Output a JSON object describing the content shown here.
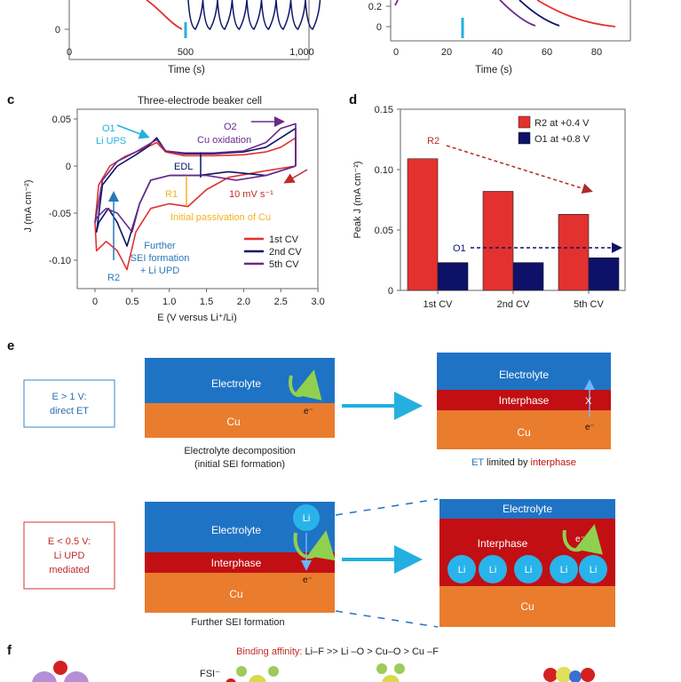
{
  "panel_a": {
    "xlabel": "Time (s)",
    "xticks": [
      "0",
      "500",
      "1,000"
    ],
    "yticks": [
      "0"
    ]
  },
  "panel_b": {
    "xlabel": "Time (s)",
    "xticks": [
      "0",
      "20",
      "40",
      "60",
      "80"
    ],
    "yticks": [
      "0",
      "0.2"
    ]
  },
  "panel_c": {
    "letter": "c",
    "title": "Three-electrode beaker cell",
    "ylabel": "J (mA cm⁻²)",
    "xlabel": "E (V versus Li⁺/Li)",
    "annotations": {
      "o1": "O1",
      "o1b": "Li UPS",
      "o2": "O2",
      "o2b": "Cu oxidation",
      "edl": "EDL",
      "r1": "R1",
      "rate": "10 mV s⁻¹",
      "passivation": "Initial passivation of Cu",
      "further1": "Further",
      "further2": "SEI formation",
      "further3": "+ Li UPD",
      "r2": "R2"
    }
  },
  "panel_d": {
    "letter": "d",
    "r2_label": "R2",
    "o1_label": "O1"
  },
  "panel_e": {
    "letter": "e",
    "top_condition": [
      "E > 1 V:",
      "direct ET"
    ],
    "bottom_condition": [
      "E < 0.5 V:",
      "Li UPD",
      "mediated"
    ],
    "electrolyte": "Electrolyte",
    "cu": "Cu",
    "interphase": "Interphase",
    "li": "Li",
    "electron": "e⁻",
    "x_mark": "X",
    "caption_top_left": [
      "Electrolyte decomposition",
      "(initial SEI formation)"
    ],
    "caption_top_right": {
      "et": "ET",
      "rest": " limited by ",
      "interphase": "interphase"
    },
    "caption_bottom_left": "Further SEI formation"
  },
  "panel_f": {
    "letter": "f",
    "binding_label": "Binding affinity:",
    "binding_order": " Li–F >> Li –O > Cu–O > Cu –F",
    "sei_label": "FSI⁻"
  },
  "colors": {
    "red": "#e3312f",
    "navy": "#0d1268",
    "purple": "#6b2a8c",
    "cyan": "#23b0e0",
    "electrolyte": "#1f73c4",
    "cu": "#ea7c2e",
    "interphase": "#c10f14",
    "gold": "#f3b21b"
  },
  "chart_data": [
    {
      "type": "bar",
      "title": "",
      "categories": [
        "1st CV",
        "2nd CV",
        "5th CV"
      ],
      "series": [
        {
          "name": "R2 at +0.4 V",
          "values": [
            0.109,
            0.082,
            0.063
          ]
        },
        {
          "name": "O1 at +0.8 V",
          "values": [
            0.023,
            0.023,
            0.027
          ]
        }
      ],
      "ylabel": "Peak J (mA cm⁻²)",
      "ylim": [
        0,
        0.15
      ],
      "yticks": [
        "0",
        "0.05",
        "0.10",
        "0.15"
      ],
      "legend": "top-right"
    },
    {
      "type": "line",
      "title": "Three-electrode beaker cell",
      "xlim": [
        -0.25,
        3.0
      ],
      "ylim": [
        -0.13,
        0.06
      ],
      "xticks": [
        "0",
        "0.5",
        "1.0",
        "1.5",
        "2.0",
        "2.5",
        "3.0"
      ],
      "yticks": [
        "0.05",
        "0",
        "-0.05",
        "-0.10"
      ],
      "legend": "bottom-right",
      "series": [
        {
          "name": "1st CV",
          "x": [
            2.7,
            2.3,
            1.8,
            1.5,
            1.25,
            1.0,
            0.75,
            0.55,
            0.43,
            0.3,
            0.15,
            0.02,
            0.0,
            0.05,
            0.2,
            0.4,
            0.55,
            0.7,
            0.83,
            0.95,
            1.2,
            1.6,
            2.0,
            2.3,
            2.5,
            2.7,
            2.7
          ],
          "y": [
            0.0,
            -0.005,
            -0.012,
            -0.025,
            -0.043,
            -0.04,
            -0.045,
            -0.07,
            -0.11,
            -0.09,
            -0.08,
            -0.09,
            -0.06,
            -0.02,
            0.0,
            0.01,
            0.015,
            0.02,
            0.025,
            0.015,
            0.011,
            0.011,
            0.012,
            0.015,
            0.02,
            0.03,
            0.0
          ]
        },
        {
          "name": "2nd CV",
          "x": [
            2.7,
            2.3,
            1.8,
            1.4,
            1.0,
            0.75,
            0.6,
            0.43,
            0.3,
            0.18,
            0.05,
            0.02,
            0.1,
            0.3,
            0.55,
            0.7,
            0.83,
            0.95,
            1.2,
            1.6,
            2.0,
            2.3,
            2.5,
            2.7,
            2.7
          ],
          "y": [
            0.0,
            -0.01,
            -0.006,
            -0.01,
            -0.01,
            -0.015,
            -0.04,
            -0.085,
            -0.06,
            -0.045,
            -0.06,
            -0.07,
            -0.02,
            0.0,
            0.012,
            0.02,
            0.03,
            0.016,
            0.013,
            0.013,
            0.015,
            0.02,
            0.03,
            0.04,
            0.0
          ]
        },
        {
          "name": "5th CV",
          "x": [
            2.7,
            2.3,
            1.9,
            1.5,
            1.0,
            0.75,
            0.6,
            0.5,
            0.3,
            0.15,
            0.02,
            0.0,
            0.1,
            0.3,
            0.55,
            0.7,
            0.83,
            0.95,
            1.2,
            1.6,
            2.0,
            2.3,
            2.5,
            2.7,
            2.7
          ],
          "y": [
            0.0,
            -0.01,
            -0.015,
            -0.01,
            -0.01,
            -0.015,
            -0.04,
            -0.07,
            -0.05,
            -0.045,
            -0.055,
            -0.06,
            -0.015,
            0.005,
            0.015,
            0.022,
            0.028,
            0.016,
            0.014,
            0.014,
            0.016,
            0.025,
            0.04,
            0.045,
            0.0
          ]
        }
      ]
    }
  ]
}
